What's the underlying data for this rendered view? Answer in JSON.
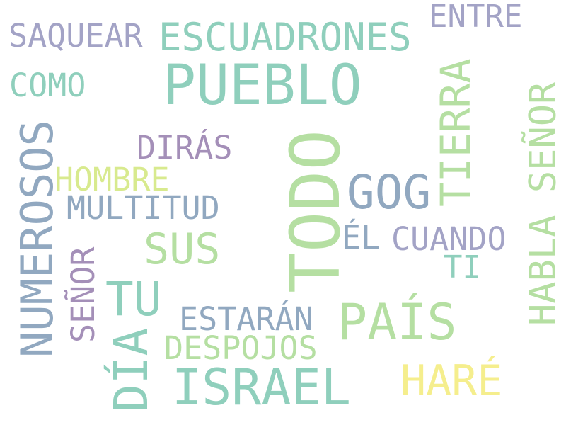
{
  "words": {
    "pueblo": "PUEBLO",
    "todo": "TODO",
    "escuadrones": "ESCUADRONES",
    "saquear": "SAQUEAR",
    "entre": "ENTRE",
    "como": "COMO",
    "numerosos": "NUMEROSOS",
    "diras": "DIRÁS",
    "hombre": "HOMBRE",
    "gog": "GOG",
    "tierra": "TIERRA",
    "habla_senor": "HABLA SEÑOR",
    "multitud": "MULTITUD",
    "sus": "SUS",
    "el": "ÉL",
    "cuando": "CUANDO",
    "ti": "TI",
    "senor": "SEÑOR",
    "tu": "TU",
    "estaran": "ESTARÁN",
    "pais": "PAÍS",
    "despojos": "DESPOJOS",
    "dia": "DÍA",
    "israel": "ISRAEL",
    "hare": "HARÉ"
  },
  "colors": {
    "teal": "#8fcfbc",
    "slate": "#91a8c0",
    "purple": "#a48fb8",
    "lavender": "#a3a3c6",
    "lime": "#d8ea8e",
    "green": "#b5dfa2",
    "yellow": "#f5ee8d"
  }
}
